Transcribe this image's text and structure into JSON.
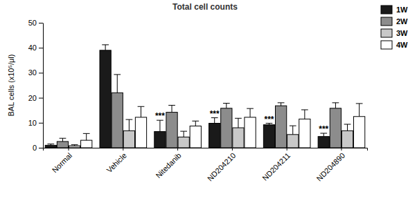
{
  "chart_data": {
    "type": "bar",
    "title": "Total cell counts",
    "y_label": "BAL cells (x10⁵/μl)",
    "categories": [
      "Normal",
      "Vehicle",
      "Nitedanib",
      "ND204210",
      "ND204211",
      "ND204890"
    ],
    "series": [
      {
        "name": "1W",
        "color": "#1a1a1a",
        "values": [
          1.0,
          39.0,
          6.5,
          9.8,
          9.2,
          4.5
        ],
        "errors": [
          0.5,
          2.2,
          4.5,
          2.2,
          0.6,
          1.3
        ]
      },
      {
        "name": "2W",
        "color": "#8c8c8c",
        "values": [
          2.5,
          22.0,
          14.2,
          15.8,
          16.8,
          15.8
        ],
        "errors": [
          1.3,
          7.3,
          2.8,
          2.0,
          1.2,
          2.2
        ]
      },
      {
        "name": "3W",
        "color": "#c8c8c8",
        "values": [
          0.8,
          6.8,
          4.3,
          8.0,
          5.3,
          6.8
        ],
        "errors": [
          0.4,
          4.5,
          2.3,
          3.8,
          3.5,
          2.6
        ]
      },
      {
        "name": "4W",
        "color": "#ffffff",
        "values": [
          3.0,
          12.2,
          8.7,
          12.2,
          11.5,
          12.5
        ],
        "errors": [
          2.7,
          4.3,
          2.0,
          3.5,
          3.7,
          5.2
        ]
      }
    ],
    "annotations": [
      {
        "text": "***",
        "category": "Nitedanib",
        "series": "1W"
      },
      {
        "text": "***",
        "category": "ND204210",
        "series": "1W"
      },
      {
        "text": "***",
        "category": "ND204211",
        "series": "1W"
      },
      {
        "text": "***",
        "category": "ND204890",
        "series": "1W"
      }
    ],
    "ylim": [
      0,
      50
    ],
    "yticks": [
      0,
      10,
      20,
      30,
      40,
      50
    ],
    "legend": "right",
    "grid": false
  }
}
